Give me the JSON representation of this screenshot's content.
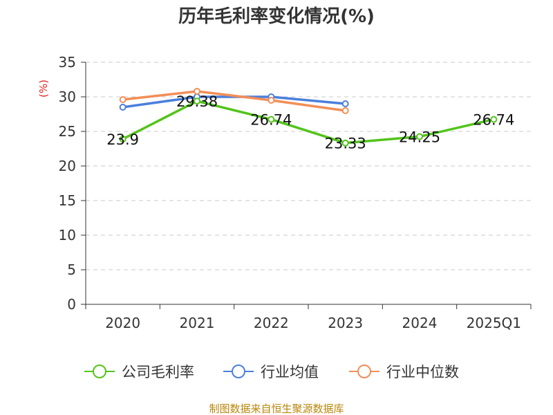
{
  "chart_data": {
    "type": "line",
    "title": "历年毛利率变化情况(%)",
    "ylabel": "(%)",
    "xlabel": "",
    "categories": [
      "2020",
      "2021",
      "2022",
      "2023",
      "2024",
      "2025Q1"
    ],
    "ylim": [
      0,
      35
    ],
    "yticks": [
      0,
      5,
      10,
      15,
      20,
      25,
      30,
      35
    ],
    "grid": true,
    "legend_position": "bottom",
    "series": [
      {
        "name": "公司毛利率",
        "color": "#52c41a",
        "values": [
          23.9,
          29.38,
          26.74,
          23.33,
          24.25,
          26.74
        ],
        "labels": [
          "23.9",
          "29.38",
          "26.74",
          "23.33",
          "24.25",
          "26.74"
        ]
      },
      {
        "name": "行业均值",
        "color": "#4a7fdc",
        "values": [
          28.5,
          30.0,
          30.0,
          29.0,
          null,
          null
        ]
      },
      {
        "name": "行业中位数",
        "color": "#f28e57",
        "values": [
          29.6,
          30.8,
          29.5,
          28.0,
          null,
          null
        ]
      }
    ]
  },
  "source_text": "制图数据来自恒生聚源数据库"
}
